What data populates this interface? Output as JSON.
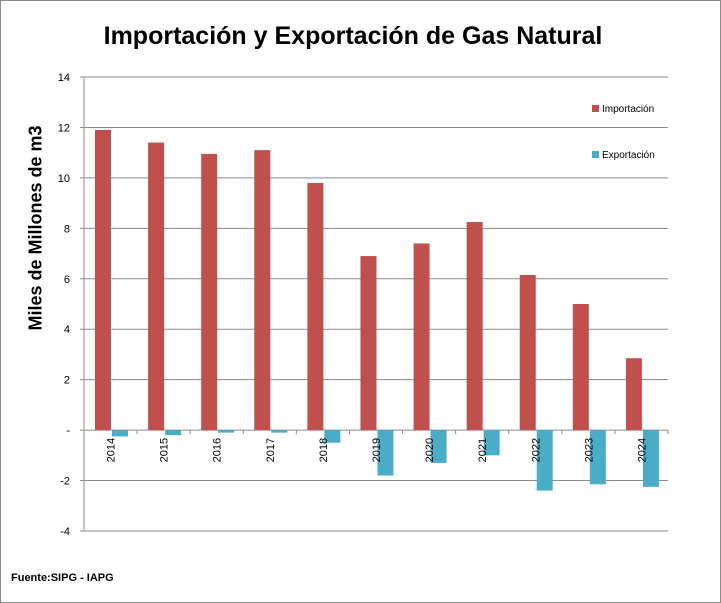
{
  "chart_data": {
    "type": "bar",
    "title": "Importación y Exportación de Gas Natural",
    "ylabel": "Miles de Millones de m3",
    "xlabel": "",
    "source": "Fuente:SIPG - IAPG",
    "categories": [
      "2014",
      "2015",
      "2016",
      "2017",
      "2018",
      "2019",
      "2020",
      "2021",
      "2022",
      "2023",
      "2024"
    ],
    "series": [
      {
        "name": "Importación",
        "color": "#c0504d",
        "values": [
          11.9,
          11.4,
          10.95,
          11.1,
          9.8,
          6.9,
          7.4,
          8.25,
          6.15,
          5.0,
          2.85
        ]
      },
      {
        "name": "Exportación",
        "color": "#4bacc6",
        "values": [
          -0.25,
          -0.2,
          -0.1,
          -0.1,
          -0.5,
          -1.8,
          -1.3,
          -1.0,
          -2.4,
          -2.15,
          -2.25
        ]
      }
    ],
    "ylim": [
      -4,
      14
    ],
    "yticks": [
      {
        "v": 14,
        "label": "14"
      },
      {
        "v": 12,
        "label": "12"
      },
      {
        "v": 10,
        "label": "10"
      },
      {
        "v": 8,
        "label": "8"
      },
      {
        "v": 6,
        "label": "6"
      },
      {
        "v": 4,
        "label": "4"
      },
      {
        "v": 2,
        "label": "2"
      },
      {
        "v": 0,
        "label": "-"
      },
      {
        "v": -2,
        "label": "-2"
      },
      {
        "v": -4,
        "label": "-4"
      }
    ],
    "grid": true,
    "legend_position": "right"
  }
}
